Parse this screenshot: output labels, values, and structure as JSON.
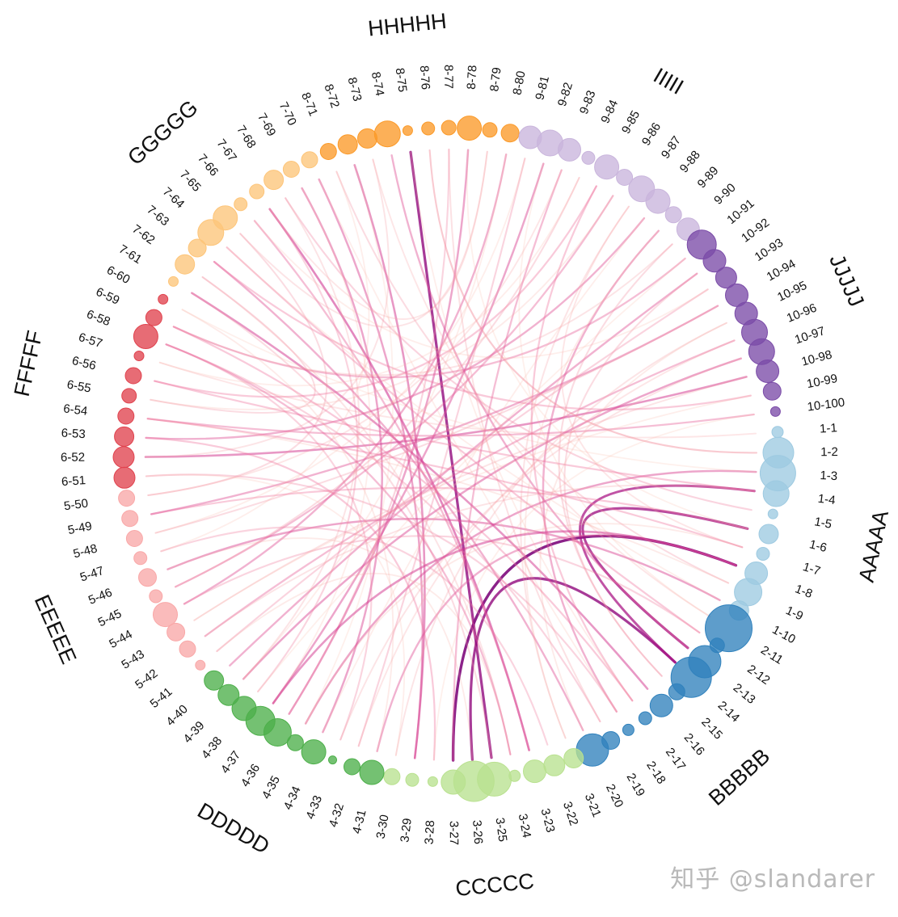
{
  "watermark": "知乎 @slandarer",
  "chart_data": {
    "type": "chord",
    "title": "",
    "groups": [
      {
        "name": "AAAAA",
        "color": "#9ecae1",
        "nodes": [
          "1-1",
          "1-2",
          "1-3",
          "1-4",
          "1-5",
          "1-6",
          "1-7",
          "1-8",
          "1-9",
          "1-10"
        ],
        "sizes": [
          7,
          19,
          22,
          16,
          6,
          12,
          8,
          14,
          17,
          12
        ]
      },
      {
        "name": "BBBBB",
        "color": "#3182bd",
        "nodes": [
          "2-11",
          "2-12",
          "2-13",
          "2-14",
          "2-15",
          "2-16",
          "2-17",
          "2-18",
          "2-19",
          "2-20"
        ],
        "sizes": [
          29,
          9,
          20,
          25,
          10,
          14,
          8,
          7,
          11,
          20
        ]
      },
      {
        "name": "CCCCC",
        "color": "#b9e18f",
        "nodes": [
          "3-21",
          "3-22",
          "3-23",
          "3-24",
          "3-25",
          "3-26",
          "3-27",
          "3-28",
          "3-29",
          "3-30"
        ],
        "sizes": [
          12,
          13,
          14,
          7,
          21,
          25,
          15,
          6,
          8,
          10
        ]
      },
      {
        "name": "DDDDD",
        "color": "#4daf4a",
        "nodes": [
          "4-31",
          "4-32",
          "4-33",
          "4-34",
          "4-35",
          "4-36",
          "4-37",
          "4-38",
          "4-39",
          "4-40"
        ],
        "sizes": [
          15,
          10,
          5,
          15,
          10,
          17,
          18,
          15,
          13,
          12
        ]
      },
      {
        "name": "EEEEE",
        "color": "#f9a8a8",
        "nodes": [
          "5-41",
          "5-42",
          "5-43",
          "5-44",
          "5-45",
          "5-46",
          "5-47",
          "5-48",
          "5-49",
          "5-50"
        ],
        "sizes": [
          6,
          10,
          11,
          15,
          8,
          11,
          8,
          10,
          10,
          10
        ]
      },
      {
        "name": "FFFFF",
        "color": "#e0434e",
        "nodes": [
          "6-51",
          "6-52",
          "6-53",
          "6-54",
          "6-55",
          "6-56",
          "6-57",
          "6-58",
          "6-59",
          "6-60"
        ],
        "sizes": [
          13,
          13,
          12,
          10,
          9,
          10,
          6,
          15,
          10,
          6
        ]
      },
      {
        "name": "GGGGG",
        "color": "#fdc57a",
        "nodes": [
          "7-61",
          "7-62",
          "7-63",
          "7-64",
          "7-65",
          "7-66",
          "7-67",
          "7-68",
          "7-69",
          "7-70"
        ],
        "sizes": [
          6,
          12,
          11,
          16,
          15,
          8,
          9,
          12,
          10,
          10
        ]
      },
      {
        "name": "HHHHH",
        "color": "#fb9a29",
        "nodes": [
          "8-71",
          "8-72",
          "8-73",
          "8-74",
          "8-75",
          "8-76",
          "8-77",
          "8-78",
          "8-79",
          "8-80"
        ],
        "sizes": [
          10,
          12,
          12,
          16,
          6,
          8,
          9,
          15,
          9,
          11
        ]
      },
      {
        "name": "IIIII",
        "color": "#c9b5dc",
        "nodes": [
          "9-81",
          "9-82",
          "9-83",
          "9-84",
          "9-85",
          "9-86",
          "9-87",
          "9-88",
          "9-89",
          "9-90"
        ],
        "sizes": [
          14,
          16,
          14,
          8,
          15,
          10,
          16,
          15,
          10,
          14
        ]
      },
      {
        "name": "JJJJJ",
        "color": "#7b4ca8",
        "nodes": [
          "10-91",
          "10-92",
          "10-93",
          "10-94",
          "10-95",
          "10-96",
          "10-97",
          "10-98",
          "10-99",
          "10-100"
        ],
        "sizes": [
          18,
          14,
          13,
          14,
          14,
          16,
          16,
          14,
          11,
          6
        ]
      }
    ],
    "links": [
      [
        26,
        7,
        1.0
      ],
      [
        25,
        13,
        0.9
      ],
      [
        12,
        5,
        0.85
      ],
      [
        13,
        3,
        0.8
      ],
      [
        24,
        74,
        0.9
      ],
      [
        7,
        30,
        0.45
      ],
      [
        2,
        34,
        0.5
      ],
      [
        9,
        45,
        0.5
      ],
      [
        15,
        60,
        0.55
      ],
      [
        22,
        66,
        0.6
      ],
      [
        28,
        71,
        0.55
      ],
      [
        33,
        68,
        0.5
      ],
      [
        36,
        81,
        0.5
      ],
      [
        39,
        91,
        0.45
      ],
      [
        41,
        95,
        0.4
      ],
      [
        44,
        85,
        0.4
      ],
      [
        48,
        5,
        0.35
      ],
      [
        51,
        97,
        0.55
      ],
      [
        52,
        87,
        0.45
      ],
      [
        53,
        99,
        0.4
      ],
      [
        55,
        3,
        0.35
      ],
      [
        58,
        90,
        0.4
      ],
      [
        62,
        19,
        0.45
      ],
      [
        65,
        22,
        0.4
      ],
      [
        69,
        28,
        0.5
      ],
      [
        73,
        12,
        0.45
      ],
      [
        77,
        35,
        0.5
      ],
      [
        79,
        43,
        0.45
      ],
      [
        82,
        26,
        0.4
      ],
      [
        84,
        55,
        0.35
      ],
      [
        88,
        17,
        0.45
      ],
      [
        93,
        48,
        0.45
      ],
      [
        96,
        38,
        0.5
      ],
      [
        98,
        62,
        0.35
      ],
      [
        1,
        75,
        0.3
      ],
      [
        4,
        67,
        0.3
      ],
      [
        11,
        63,
        0.35
      ],
      [
        16,
        84,
        0.35
      ],
      [
        18,
        57,
        0.3
      ],
      [
        21,
        46,
        0.3
      ],
      [
        27,
        52,
        0.35
      ],
      [
        31,
        80,
        0.3
      ],
      [
        35,
        76,
        0.3
      ],
      [
        37,
        66,
        0.3
      ],
      [
        40,
        92,
        0.3
      ],
      [
        43,
        11,
        0.3
      ],
      [
        47,
        93,
        0.25
      ],
      [
        50,
        17,
        0.3
      ],
      [
        54,
        61,
        0.25
      ],
      [
        57,
        32,
        0.3
      ],
      [
        60,
        24,
        0.25
      ],
      [
        64,
        49,
        0.25
      ],
      [
        67,
        38,
        0.2
      ],
      [
        70,
        8,
        0.25
      ],
      [
        72,
        51,
        0.2
      ],
      [
        78,
        64,
        0.2
      ],
      [
        83,
        44,
        0.25
      ],
      [
        86,
        20,
        0.2
      ],
      [
        89,
        58,
        0.2
      ],
      [
        91,
        14,
        0.25
      ],
      [
        94,
        29,
        0.2
      ],
      [
        97,
        42,
        0.2
      ],
      [
        0,
        56,
        0.18
      ],
      [
        6,
        86,
        0.18
      ],
      [
        10,
        72,
        0.18
      ],
      [
        19,
        94,
        0.15
      ],
      [
        23,
        40,
        0.15
      ],
      [
        30,
        59,
        0.15
      ],
      [
        42,
        98,
        0.12
      ],
      [
        46,
        70,
        0.12
      ],
      [
        56,
        83,
        0.12
      ],
      [
        63,
        9,
        0.12
      ],
      [
        68,
        36,
        0.12
      ],
      [
        75,
        1,
        0.15
      ],
      [
        80,
        47,
        0.12
      ],
      [
        87,
        33,
        0.12
      ],
      [
        92,
        65,
        0.12
      ],
      [
        99,
        27,
        0.1
      ],
      [
        14,
        89,
        0.25
      ],
      [
        32,
        96,
        0.2
      ],
      [
        49,
        82,
        0.18
      ],
      [
        61,
        23,
        0.2
      ],
      [
        66,
        78,
        0.18
      ],
      [
        76,
        18,
        0.22
      ],
      [
        85,
        54,
        0.15
      ],
      [
        95,
        31,
        0.18
      ],
      [
        3,
        41,
        0.2
      ],
      [
        8,
        53,
        0.15
      ],
      [
        17,
        69,
        0.12
      ],
      [
        20,
        88,
        0.15
      ],
      [
        29,
        50,
        0.12
      ],
      [
        34,
        6,
        0.15
      ],
      [
        38,
        79,
        0.12
      ],
      [
        45,
        25,
        0.15
      ],
      [
        59,
        2,
        0.1
      ],
      [
        71,
        34,
        0.1
      ],
      [
        74,
        16,
        0.12
      ],
      [
        81,
        10,
        0.1
      ],
      [
        90,
        37,
        0.1
      ],
      [
        5,
        77,
        0.1
      ],
      [
        36,
        7,
        0.55
      ],
      [
        23,
        57,
        0.4
      ],
      [
        53,
        6,
        0.35
      ],
      [
        58,
        16,
        0.35
      ]
    ]
  }
}
